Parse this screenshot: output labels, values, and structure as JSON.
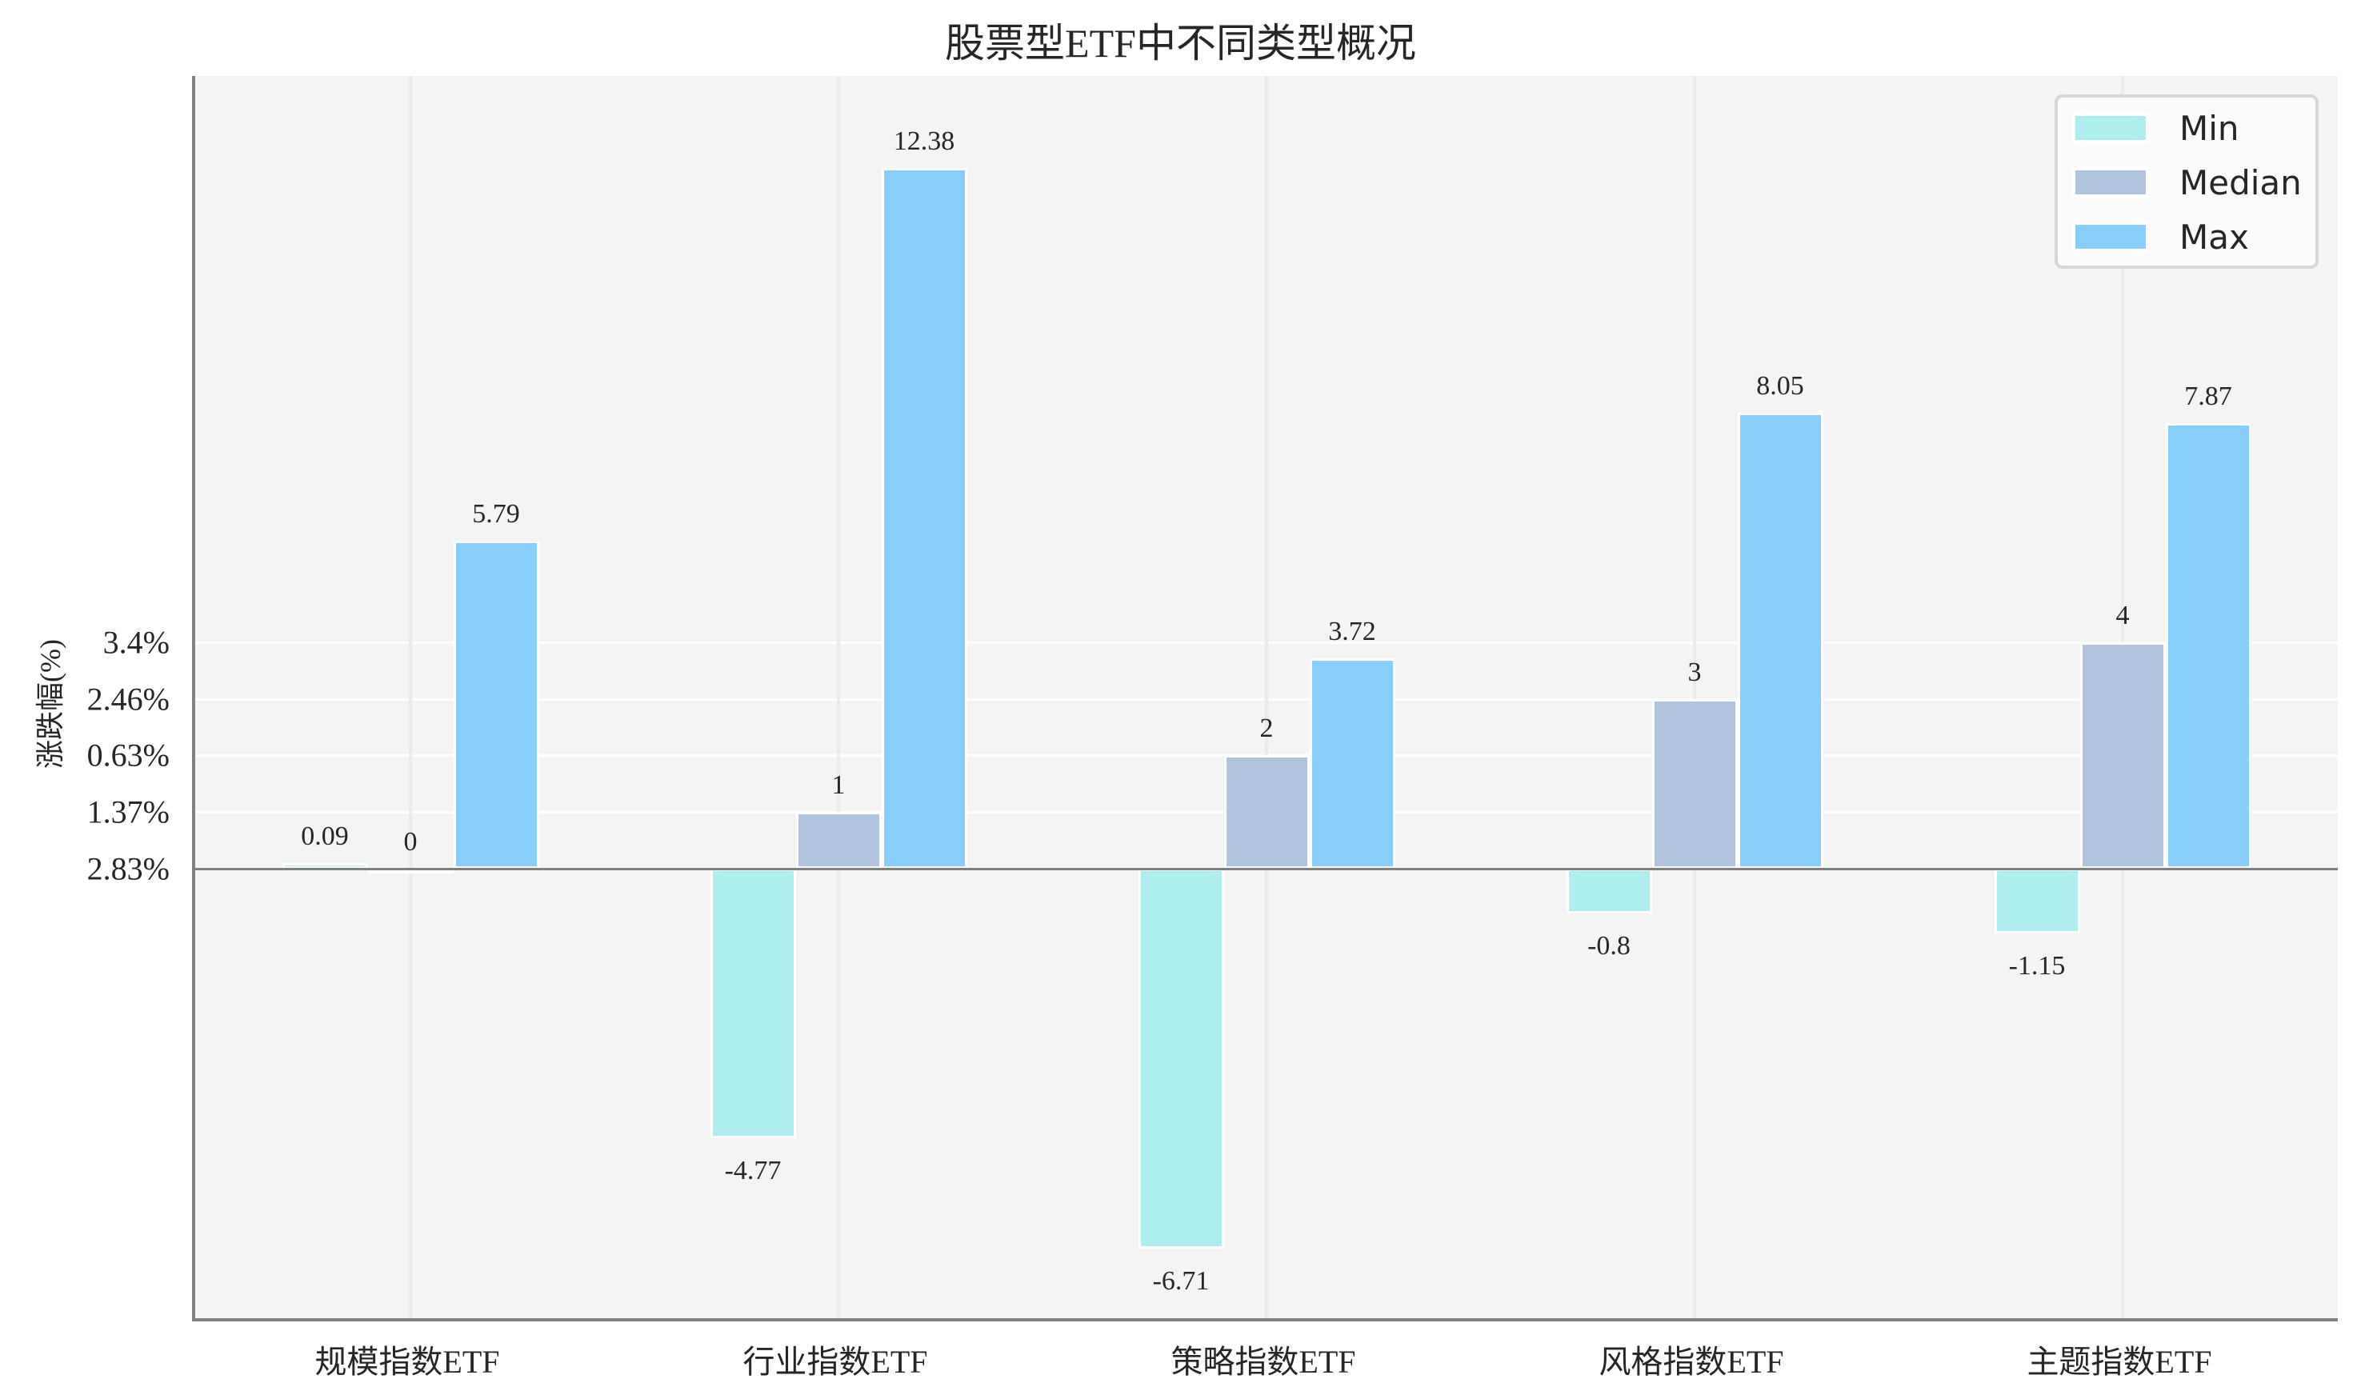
{
  "title": "股票型ETF中不同类型概况",
  "y_axis": {
    "label": "涨跌幅(%)",
    "ticks": [
      {
        "value": 0,
        "label": "2.83%"
      },
      {
        "value": 1,
        "label": "1.37%"
      },
      {
        "value": 2,
        "label": "0.63%"
      },
      {
        "value": 3,
        "label": "2.46%"
      },
      {
        "value": 4,
        "label": "3.4%"
      }
    ]
  },
  "legend": [
    {
      "name": "Min",
      "color": "#afeeee"
    },
    {
      "name": "Median",
      "color": "#b0c4de"
    },
    {
      "name": "Max",
      "color": "#87cefa"
    }
  ],
  "chart_data": {
    "type": "bar",
    "title": "股票型ETF中不同类型概况",
    "xlabel": "",
    "ylabel": "涨跌幅(%)",
    "categories": [
      "规模指数ETF",
      "行业指数ETF",
      "策略指数ETF",
      "风格指数ETF",
      "主题指数ETF"
    ],
    "series": [
      {
        "name": "Min",
        "color": "#afeeee",
        "values": [
          0.09,
          -4.77,
          -6.71,
          -0.8,
          -1.15
        ]
      },
      {
        "name": "Median",
        "color": "#b0c4de",
        "values": [
          0.0,
          1.0,
          2.0,
          3.0,
          4.0
        ]
      },
      {
        "name": "Max",
        "color": "#87cefa",
        "values": [
          5.79,
          12.38,
          3.72,
          8.05,
          7.87
        ]
      }
    ],
    "ylim": [
      -8.0,
      14.0
    ],
    "yticks": [
      0,
      1,
      2,
      3,
      4
    ],
    "ytick_labels": [
      "2.83%",
      "1.37%",
      "0.63%",
      "2.46%",
      "3.4%"
    ],
    "grid": true,
    "legend_position": "upper right"
  }
}
